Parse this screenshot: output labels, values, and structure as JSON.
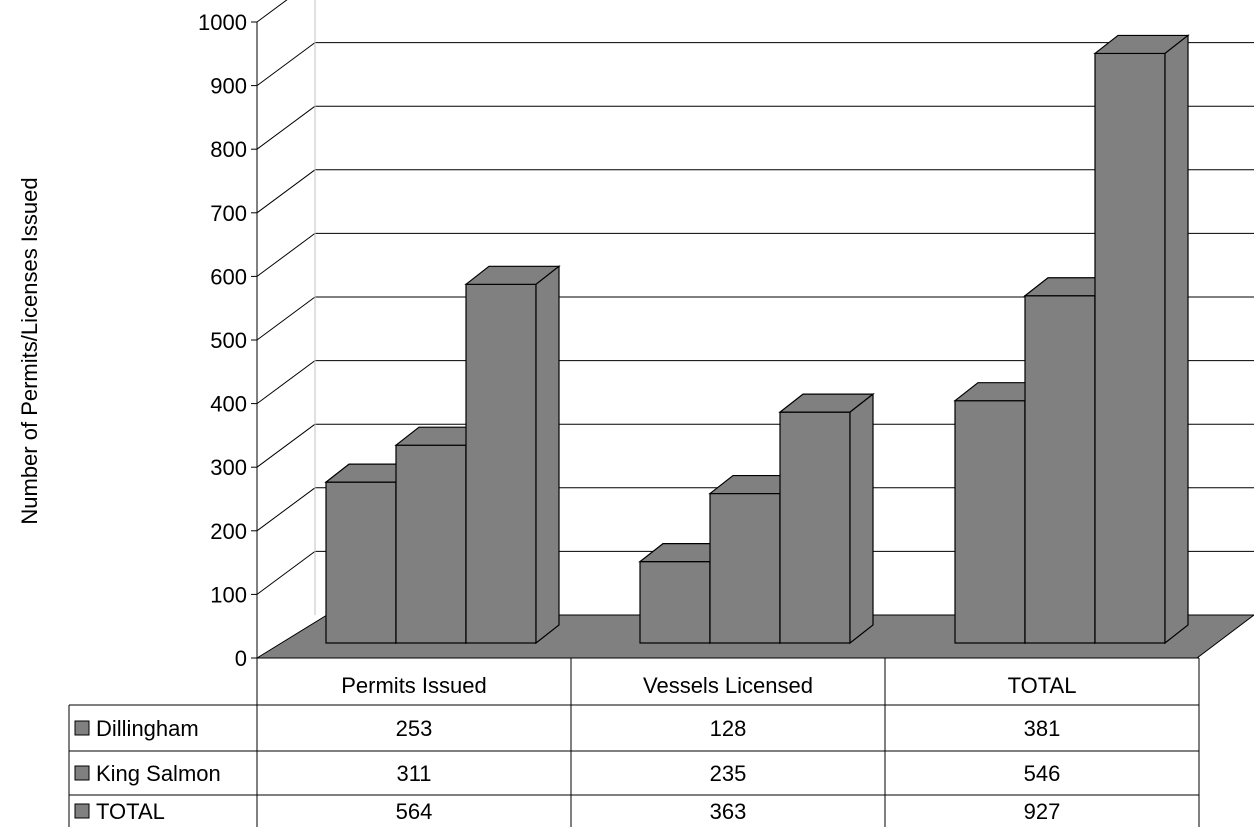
{
  "chart_data": {
    "type": "bar",
    "title": "",
    "xlabel": "",
    "ylabel": "Number of Permits/Licenses Issued",
    "ylim": [
      0,
      1000
    ],
    "yticks": [
      0,
      100,
      200,
      300,
      400,
      500,
      600,
      700,
      800,
      900,
      1000
    ],
    "grid": true,
    "three_d": true,
    "legend": "data-table-below",
    "categories": [
      "Permits Issued",
      "Vessels Licensed",
      "TOTAL"
    ],
    "series": [
      {
        "name": "Dillingham",
        "values": [
          253,
          128,
          381
        ]
      },
      {
        "name": "King Salmon",
        "values": [
          311,
          235,
          546
        ]
      },
      {
        "name": "TOTAL",
        "values": [
          564,
          363,
          927
        ]
      }
    ],
    "colors": {
      "bar": "#808080",
      "floor": "#808080",
      "legend_swatch": "#808080"
    }
  }
}
